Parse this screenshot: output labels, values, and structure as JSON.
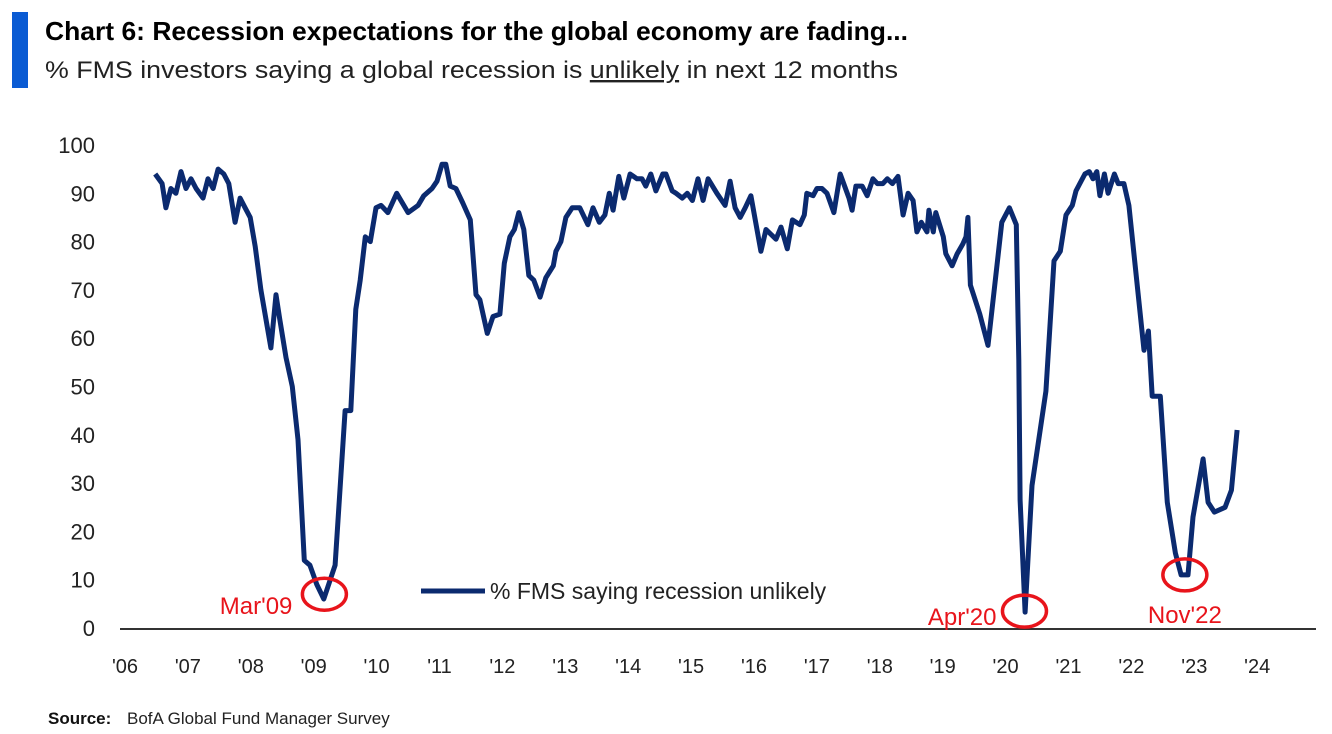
{
  "chart_data": {
    "type": "line",
    "title": "Chart 6: Recession expectations for the global economy are fading...",
    "subtitle_parts": [
      "% FMS investors saying a global recession is ",
      "unlikely",
      " in next 12 months"
    ],
    "xlabel": "",
    "ylabel": "",
    "ylim": [
      0,
      100
    ],
    "xlim": [
      2006,
      2024
    ],
    "yticks": [
      "0",
      "10",
      "20",
      "30",
      "40",
      "50",
      "60",
      "70",
      "80",
      "90",
      "100"
    ],
    "xticks": [
      {
        "year": 2006,
        "label": "'06"
      },
      {
        "year": 2007,
        "label": "'07"
      },
      {
        "year": 2008,
        "label": "'08"
      },
      {
        "year": 2009,
        "label": "'09"
      },
      {
        "year": 2010,
        "label": "'10"
      },
      {
        "year": 2011,
        "label": "'11"
      },
      {
        "year": 2012,
        "label": "'12"
      },
      {
        "year": 2013,
        "label": "'13"
      },
      {
        "year": 2014,
        "label": "'14"
      },
      {
        "year": 2015,
        "label": "'15"
      },
      {
        "year": 2016,
        "label": "'16"
      },
      {
        "year": 2017,
        "label": "'17"
      },
      {
        "year": 2018,
        "label": "'18"
      },
      {
        "year": 2019,
        "label": "'19"
      },
      {
        "year": 2020,
        "label": "'20"
      },
      {
        "year": 2021,
        "label": "'21"
      },
      {
        "year": 2022,
        "label": "'22"
      },
      {
        "year": 2023,
        "label": "'23"
      },
      {
        "year": 2024,
        "label": "'24"
      }
    ],
    "grid": false,
    "legend": {
      "placement": "bottom-center",
      "label": "% FMS saying recession unlikely"
    },
    "series": [
      {
        "name": "% FMS saying recession unlikely",
        "color": "#0b2a6f",
        "points": [
          [
            2006.48,
            94
          ],
          [
            2006.59,
            92
          ],
          [
            2006.65,
            87
          ],
          [
            2006.73,
            91
          ],
          [
            2006.81,
            90
          ],
          [
            2006.89,
            94.5
          ],
          [
            2006.97,
            91
          ],
          [
            2007.05,
            93
          ],
          [
            2007.13,
            91
          ],
          [
            2007.24,
            89
          ],
          [
            2007.32,
            93
          ],
          [
            2007.4,
            91
          ],
          [
            2007.48,
            95
          ],
          [
            2007.57,
            94
          ],
          [
            2007.65,
            92
          ],
          [
            2007.75,
            84
          ],
          [
            2007.83,
            89
          ],
          [
            2007.91,
            87
          ],
          [
            2007.99,
            85
          ],
          [
            2008.07,
            79
          ],
          [
            2008.16,
            70
          ],
          [
            2008.32,
            58
          ],
          [
            2008.4,
            69
          ],
          [
            2008.46,
            64
          ],
          [
            2008.56,
            56
          ],
          [
            2008.66,
            50
          ],
          [
            2008.75,
            39
          ],
          [
            2008.85,
            14
          ],
          [
            2008.94,
            13
          ],
          [
            2009.05,
            9
          ],
          [
            2009.16,
            6
          ],
          [
            2009.34,
            13
          ],
          [
            2009.5,
            45
          ],
          [
            2009.59,
            45
          ],
          [
            2009.67,
            66
          ],
          [
            2009.74,
            72
          ],
          [
            2009.82,
            81
          ],
          [
            2009.9,
            80
          ],
          [
            2009.99,
            87
          ],
          [
            2010.07,
            87.5
          ],
          [
            2010.18,
            86
          ],
          [
            2010.32,
            90
          ],
          [
            2010.5,
            86
          ],
          [
            2010.66,
            87.5
          ],
          [
            2010.75,
            89.5
          ],
          [
            2010.88,
            91
          ],
          [
            2010.96,
            92.5
          ],
          [
            2011.04,
            96
          ],
          [
            2011.1,
            96
          ],
          [
            2011.17,
            91.5
          ],
          [
            2011.26,
            91
          ],
          [
            2011.37,
            88
          ],
          [
            2011.49,
            84.5
          ],
          [
            2011.58,
            69
          ],
          [
            2011.64,
            68
          ],
          [
            2011.76,
            61
          ],
          [
            2011.85,
            64.5
          ],
          [
            2011.96,
            65
          ],
          [
            2012.03,
            75.5
          ],
          [
            2012.12,
            81
          ],
          [
            2012.19,
            82.5
          ],
          [
            2012.26,
            86
          ],
          [
            2012.34,
            82.5
          ],
          [
            2012.42,
            73
          ],
          [
            2012.5,
            72
          ],
          [
            2012.6,
            68.5
          ],
          [
            2012.69,
            72.5
          ],
          [
            2012.81,
            75
          ],
          [
            2012.85,
            78
          ],
          [
            2012.93,
            80
          ],
          [
            2013.01,
            85
          ],
          [
            2013.11,
            87
          ],
          [
            2013.23,
            87
          ],
          [
            2013.36,
            83.5
          ],
          [
            2013.44,
            87
          ],
          [
            2013.54,
            84
          ],
          [
            2013.63,
            85.5
          ],
          [
            2013.7,
            90
          ],
          [
            2013.76,
            86.5
          ],
          [
            2013.85,
            93.5
          ],
          [
            2013.93,
            89
          ],
          [
            2014.03,
            94
          ],
          [
            2014.14,
            93
          ],
          [
            2014.22,
            93
          ],
          [
            2014.28,
            91.5
          ],
          [
            2014.36,
            94
          ],
          [
            2014.44,
            90.5
          ],
          [
            2014.55,
            94
          ],
          [
            2014.6,
            94
          ],
          [
            2014.7,
            90.5
          ],
          [
            2014.76,
            90
          ],
          [
            2014.86,
            89
          ],
          [
            2014.94,
            90
          ],
          [
            2015.02,
            88.5
          ],
          [
            2015.11,
            93
          ],
          [
            2015.19,
            88.5
          ],
          [
            2015.27,
            93
          ],
          [
            2015.41,
            90
          ],
          [
            2015.54,
            87.5
          ],
          [
            2015.62,
            92.5
          ],
          [
            2015.7,
            87
          ],
          [
            2015.78,
            85
          ],
          [
            2015.86,
            87
          ],
          [
            2015.95,
            89.5
          ],
          [
            2016.11,
            78
          ],
          [
            2016.19,
            82.5
          ],
          [
            2016.27,
            81.5
          ],
          [
            2016.35,
            80.5
          ],
          [
            2016.43,
            83
          ],
          [
            2016.53,
            78.5
          ],
          [
            2016.61,
            84.5
          ],
          [
            2016.73,
            83.5
          ],
          [
            2016.8,
            85.5
          ],
          [
            2016.84,
            90
          ],
          [
            2016.94,
            89.5
          ],
          [
            2017.0,
            91
          ],
          [
            2017.08,
            91
          ],
          [
            2017.16,
            90
          ],
          [
            2017.27,
            86
          ],
          [
            2017.37,
            94
          ],
          [
            2017.51,
            89
          ],
          [
            2017.56,
            86.5
          ],
          [
            2017.62,
            91.5
          ],
          [
            2017.72,
            91.5
          ],
          [
            2017.8,
            89.5
          ],
          [
            2017.89,
            93
          ],
          [
            2017.96,
            92
          ],
          [
            2018.05,
            92
          ],
          [
            2018.12,
            93
          ],
          [
            2018.2,
            92
          ],
          [
            2018.29,
            93.5
          ],
          [
            2018.37,
            85.5
          ],
          [
            2018.45,
            90
          ],
          [
            2018.53,
            88.5
          ],
          [
            2018.59,
            82
          ],
          [
            2018.66,
            84
          ],
          [
            2018.75,
            82
          ],
          [
            2018.78,
            86.5
          ],
          [
            2018.85,
            82
          ],
          [
            2018.89,
            86
          ],
          [
            2019.01,
            81
          ],
          [
            2019.05,
            77.5
          ],
          [
            2019.15,
            75
          ],
          [
            2019.23,
            77.5
          ],
          [
            2019.32,
            79.5
          ],
          [
            2019.37,
            81
          ],
          [
            2019.4,
            85
          ],
          [
            2019.44,
            71
          ],
          [
            2019.59,
            65
          ],
          [
            2019.72,
            58.5
          ],
          [
            2019.94,
            84
          ],
          [
            2020.06,
            87
          ],
          [
            2020.17,
            83.5
          ],
          [
            2020.21,
            55.5
          ],
          [
            2020.23,
            26.5
          ],
          [
            2020.31,
            3.3
          ],
          [
            2020.42,
            29.5
          ],
          [
            2020.64,
            49
          ],
          [
            2020.77,
            76
          ],
          [
            2020.87,
            78
          ],
          [
            2020.96,
            85.5
          ],
          [
            2021.06,
            87.5
          ],
          [
            2021.12,
            90.5
          ],
          [
            2021.18,
            92
          ],
          [
            2021.26,
            94
          ],
          [
            2021.33,
            94.5
          ],
          [
            2021.39,
            93
          ],
          [
            2021.45,
            94.5
          ],
          [
            2021.5,
            89.5
          ],
          [
            2021.57,
            94
          ],
          [
            2021.63,
            90
          ],
          [
            2021.73,
            94
          ],
          [
            2021.79,
            92
          ],
          [
            2021.88,
            92
          ],
          [
            2021.96,
            87.5
          ],
          [
            2022.2,
            57.5
          ],
          [
            2022.27,
            61.5
          ],
          [
            2022.33,
            48
          ],
          [
            2022.46,
            48
          ],
          [
            2022.57,
            26
          ],
          [
            2022.7,
            15.5
          ],
          [
            2022.79,
            11
          ],
          [
            2022.9,
            11
          ],
          [
            2022.98,
            23
          ],
          [
            2023.14,
            35
          ],
          [
            2023.22,
            26
          ],
          [
            2023.32,
            24
          ],
          [
            2023.49,
            25
          ],
          [
            2023.59,
            28.5
          ],
          [
            2023.68,
            41
          ]
        ]
      }
    ],
    "annotations": [
      {
        "label": "Mar'09",
        "year": 2009.17,
        "value": 7,
        "color": "#e8141b"
      },
      {
        "label": "Apr'20",
        "year": 2020.3,
        "value": 3.5,
        "color": "#e8141b"
      },
      {
        "label": "Nov'22",
        "year": 2022.85,
        "value": 11,
        "color": "#e8141b"
      }
    ],
    "accent_bar_color": "#0a5bd3"
  },
  "source": {
    "label": "Source:",
    "text": "BofA Global Fund Manager Survey"
  }
}
